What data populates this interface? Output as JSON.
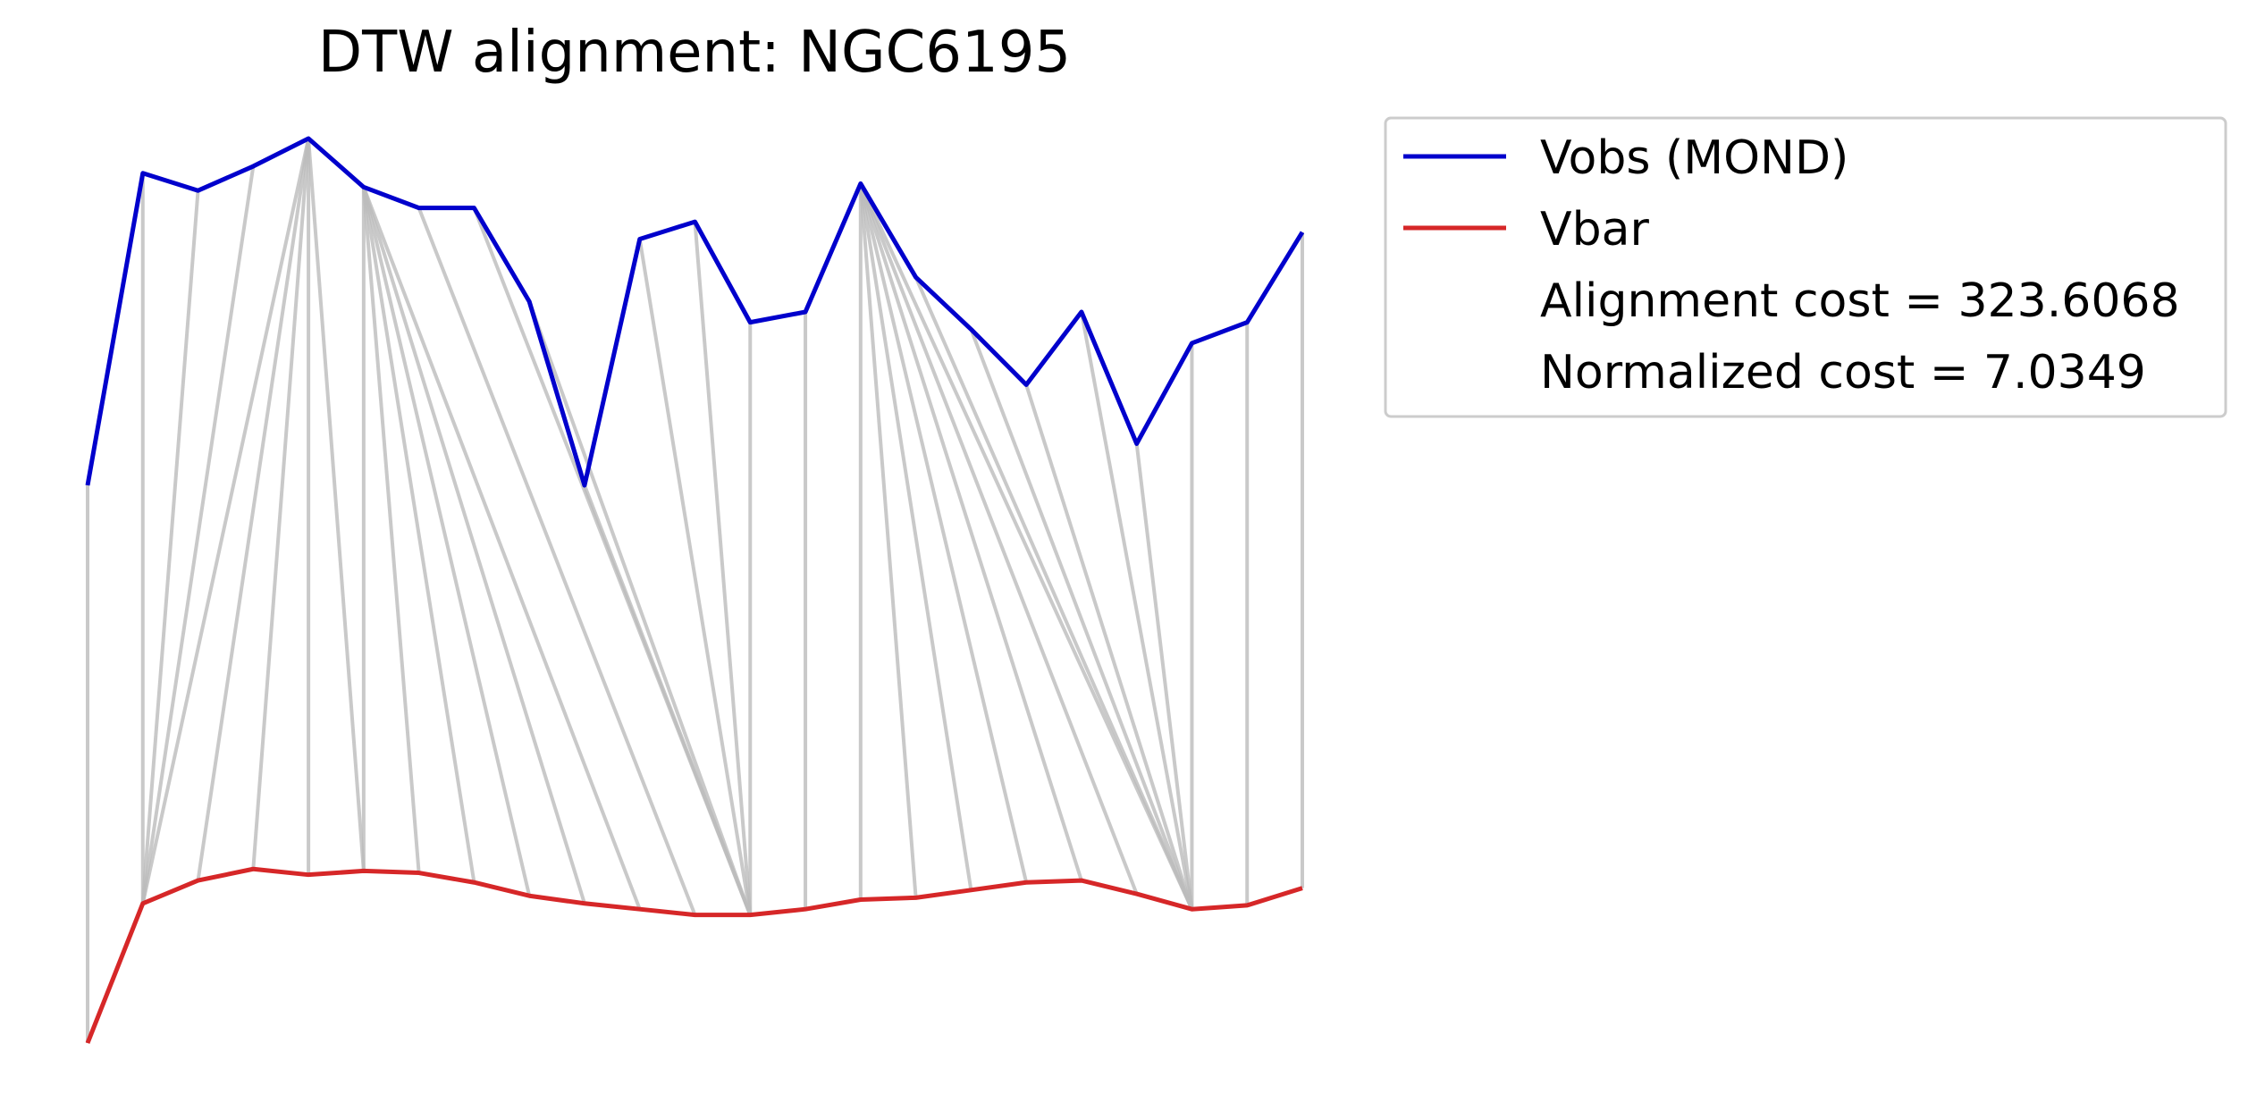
{
  "chart_data": {
    "type": "line",
    "title": "DTW alignment: NGC6195",
    "xlabel": "",
    "ylabel": "",
    "axes_visible": false,
    "grid": false,
    "legend_placement": "outside-upper-right",
    "x": [
      0,
      1,
      2,
      3,
      4,
      5,
      6,
      7,
      8,
      9,
      10,
      11,
      12,
      13,
      14,
      15,
      16,
      17,
      18,
      19,
      20,
      21,
      22
    ],
    "series": [
      {
        "name": "Vobs (MOND)",
        "color": "#0000cc",
        "values": [
          0.0,
          0.9,
          0.85,
          0.92,
          1.0,
          0.86,
          0.8,
          0.8,
          0.53,
          0.0,
          0.71,
          0.76,
          0.47,
          0.5,
          0.87,
          0.6,
          0.45,
          0.29,
          0.5,
          0.12,
          0.41,
          0.47,
          0.73
        ]
      },
      {
        "name": "Vbar",
        "color": "#d62728",
        "values": [
          0.0,
          0.73,
          0.85,
          0.91,
          0.88,
          0.9,
          0.89,
          0.84,
          0.77,
          0.73,
          0.7,
          0.67,
          0.67,
          0.7,
          0.75,
          0.76,
          0.8,
          0.84,
          0.85,
          0.78,
          0.7,
          0.72,
          0.81
        ]
      }
    ],
    "alignment_pairs": [
      [
        0,
        0
      ],
      [
        1,
        1
      ],
      [
        2,
        1
      ],
      [
        3,
        1
      ],
      [
        4,
        1
      ],
      [
        4,
        2
      ],
      [
        4,
        3
      ],
      [
        4,
        4
      ],
      [
        4,
        5
      ],
      [
        5,
        5
      ],
      [
        5,
        6
      ],
      [
        5,
        7
      ],
      [
        5,
        8
      ],
      [
        5,
        9
      ],
      [
        5,
        10
      ],
      [
        6,
        11
      ],
      [
        7,
        12
      ],
      [
        8,
        12
      ],
      [
        9,
        12
      ],
      [
        10,
        12
      ],
      [
        11,
        12
      ],
      [
        12,
        12
      ],
      [
        13,
        13
      ],
      [
        14,
        14
      ],
      [
        14,
        15
      ],
      [
        14,
        16
      ],
      [
        14,
        17
      ],
      [
        14,
        18
      ],
      [
        14,
        19
      ],
      [
        14,
        20
      ],
      [
        15,
        20
      ],
      [
        16,
        20
      ],
      [
        17,
        20
      ],
      [
        18,
        20
      ],
      [
        19,
        20
      ],
      [
        20,
        20
      ],
      [
        21,
        21
      ],
      [
        22,
        22
      ]
    ],
    "connector_color": "#bbbbbb",
    "legend": {
      "entries": [
        "Vobs (MOND)",
        "Vbar"
      ],
      "extra_text": [
        "Alignment cost = 323.6068",
        "Normalized cost = 7.0349"
      ]
    }
  }
}
